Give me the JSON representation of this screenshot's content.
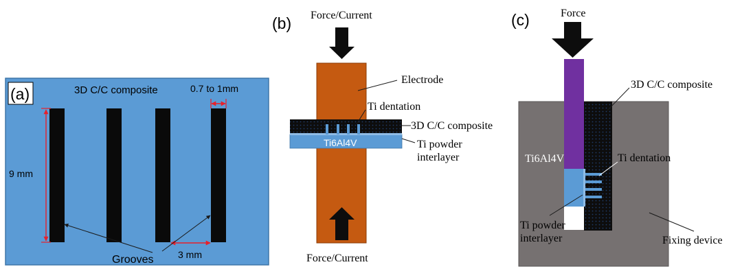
{
  "panel_a": {
    "label": "(a)",
    "title": "3D C/C composite",
    "width_label": "0.7 to 1mm",
    "height_label": "9 mm",
    "grooves_label": "Grooves",
    "spacing_label": "3 mm",
    "colors": {
      "background": "#5b9bd5",
      "groove": "#0a0a0a",
      "dimension": "#e8202a"
    }
  },
  "panel_b": {
    "label": "(b)",
    "top_label": "Force/Current",
    "bottom_label": "Force/Current",
    "electrode_label": "Electrode",
    "dentation_label": "Ti dentation",
    "composite_label": "3D C/C composite",
    "alloy_label": "Ti6Al4V",
    "powder_label_line1": "Ti powder",
    "powder_label_line2": "interlayer",
    "colors": {
      "electrode": "#c55a11",
      "alloy": "#5b9bd5",
      "composite": "#0d0d0d"
    }
  },
  "panel_c": {
    "label": "(c)",
    "force_label": "Force",
    "composite_label": "3D C/C composite",
    "alloy_label": "Ti6Al4V",
    "dentation_label": "Ti dentation",
    "powder_label_line1": "Ti powder",
    "powder_label_line2": "interlayer",
    "fixing_label": "Fixing device",
    "colors": {
      "fixture": "#767171",
      "punch": "#7030a0",
      "alloy": "#5b9bd5",
      "composite": "#0d0d0d"
    }
  }
}
